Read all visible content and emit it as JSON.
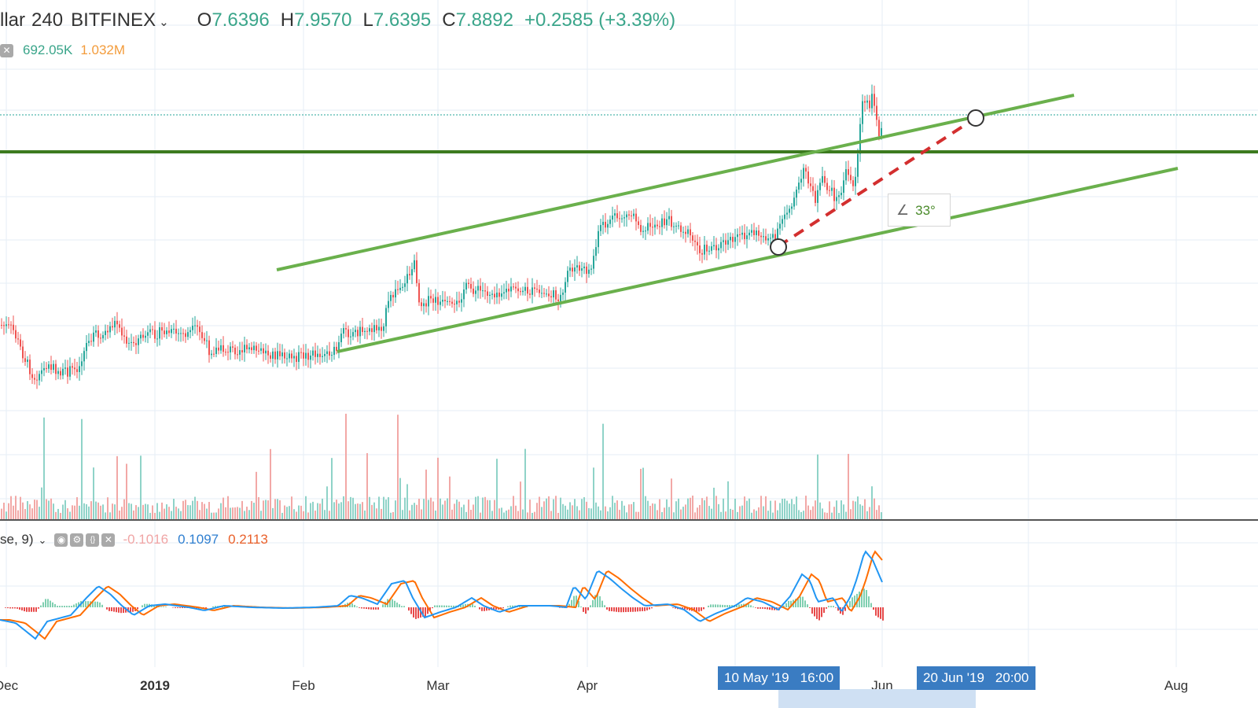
{
  "header": {
    "symbol": "llar",
    "interval": "240",
    "exchange": "BITFINEX",
    "ohlc": {
      "o_label": "O",
      "o_value": "7.6396",
      "h_label": "H",
      "h_value": "7.9570",
      "l_label": "L",
      "l_value": "7.6395",
      "c_label": "C",
      "c_value": "7.8892",
      "change": "+0.2585 (+3.39%)"
    },
    "volume": {
      "value1": "692.05K",
      "value2": "1.032M"
    }
  },
  "macd_legend": {
    "params": "se, 9)",
    "hist_value": "-0.1016",
    "macd_value": "0.1097",
    "signal_value": "0.2113"
  },
  "drawing": {
    "angle_label": "33°"
  },
  "x_axis": {
    "labels": [
      "Dec",
      "2019",
      "Feb",
      "Mar",
      "Apr",
      "Jun",
      "Aug"
    ],
    "badge_start": {
      "date": "10 May '19",
      "time": "16:00"
    },
    "badge_end": {
      "date": "20 Jun '19",
      "time": "20:00"
    }
  },
  "colors": {
    "up": "#26a69a",
    "down": "#ef5350",
    "channel": "#6ab04c",
    "hline": "#3c7a1e",
    "dashed": "#d32f2f",
    "macd": "#2196f3",
    "signal": "#ff6d00",
    "badge": "#3a7cc2"
  },
  "icons": [
    "chevron-down-icon",
    "close-icon",
    "eye-icon",
    "settings-icon",
    "source-code-icon",
    "close-icon"
  ]
}
